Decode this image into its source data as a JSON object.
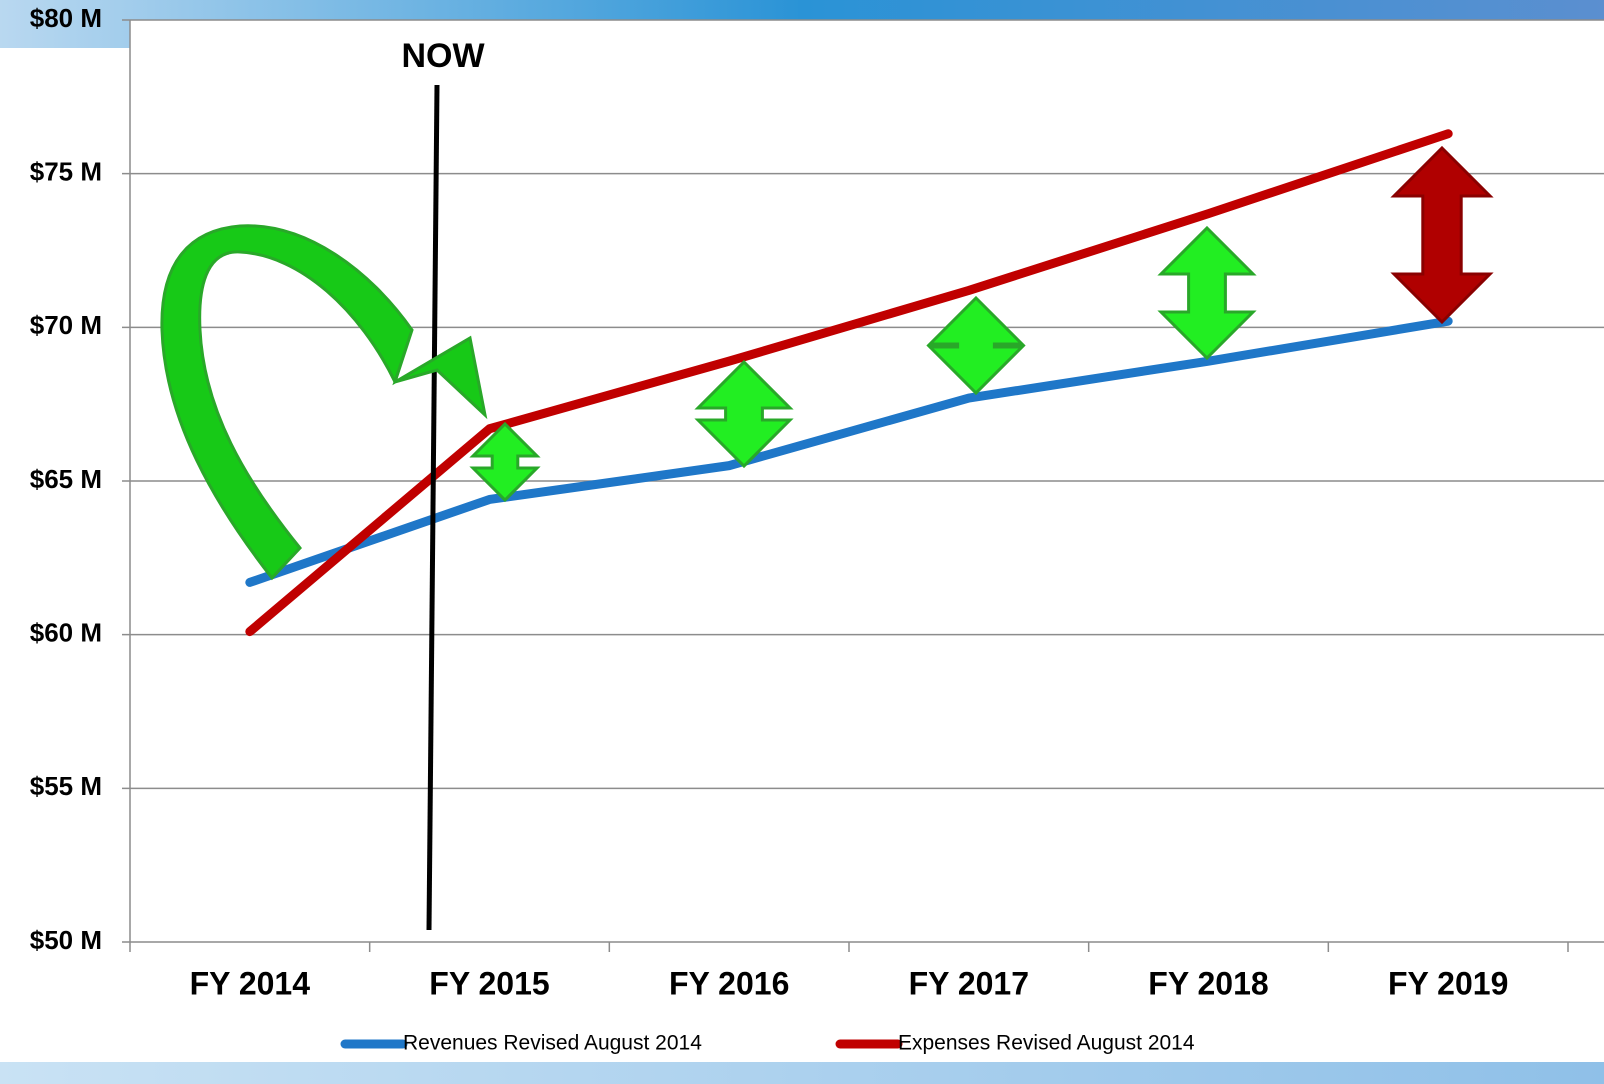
{
  "chart_data": {
    "type": "line",
    "categories": [
      "FY 2014",
      "FY 2015",
      "FY 2016",
      "FY 2017",
      "FY 2018",
      "FY 2019"
    ],
    "series": [
      {
        "name": "Revenues Revised August 2014",
        "color": "#1f77c8",
        "values": [
          61.7,
          64.4,
          65.5,
          67.7,
          68.9,
          70.2
        ]
      },
      {
        "name": "Expenses Revised August 2014",
        "color": "#c00000",
        "values": [
          60.1,
          66.7,
          68.9,
          71.2,
          73.7,
          76.3
        ]
      }
    ],
    "ylim": [
      50,
      80
    ],
    "yticks": [
      {
        "value": 50,
        "label": "$50 M"
      },
      {
        "value": 55,
        "label": "$55 M"
      },
      {
        "value": 60,
        "label": "$60 M"
      },
      {
        "value": 65,
        "label": "$65 M"
      },
      {
        "value": 70,
        "label": "$70 M"
      },
      {
        "value": 75,
        "label": "$75 M"
      },
      {
        "value": 80,
        "label": "$80 M"
      }
    ],
    "grid": true,
    "annotations": [
      "NOW"
    ],
    "legend": "bottom"
  }
}
